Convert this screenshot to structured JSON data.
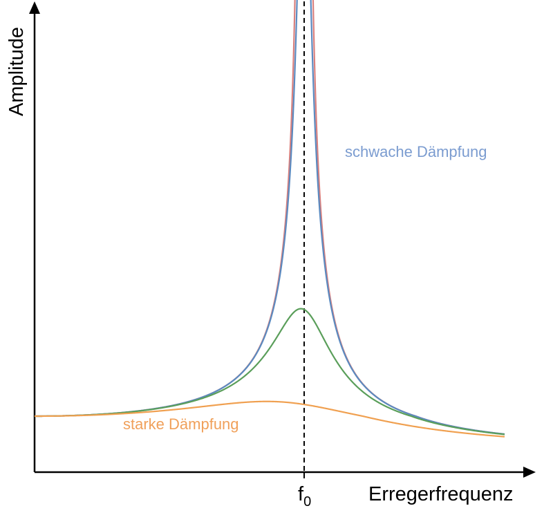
{
  "chart_data": {
    "type": "line",
    "xlabel": "Erregerfrequenz",
    "ylabel": "Amplitude",
    "marker": {
      "base": "f",
      "sub": "0"
    },
    "annotations": [
      {
        "text": "schwache Dämpfung",
        "color": "#7b9cd0"
      },
      {
        "text": "starke Dämpfung",
        "color": "#f0a05a"
      }
    ],
    "grid": false,
    "legend": "none",
    "x_range": [
      0,
      1.75
    ],
    "series_damping": [
      0,
      0.022,
      0.11,
      0.36
    ],
    "series": [
      {
        "damping": 0,
        "color": "#d9807e"
      },
      {
        "damping": 0.022,
        "color": "#5b8ac0"
      },
      {
        "damping": 0.11,
        "color": "#5a9e5a"
      },
      {
        "damping": 0.36,
        "color": "#f0a050"
      }
    ]
  }
}
